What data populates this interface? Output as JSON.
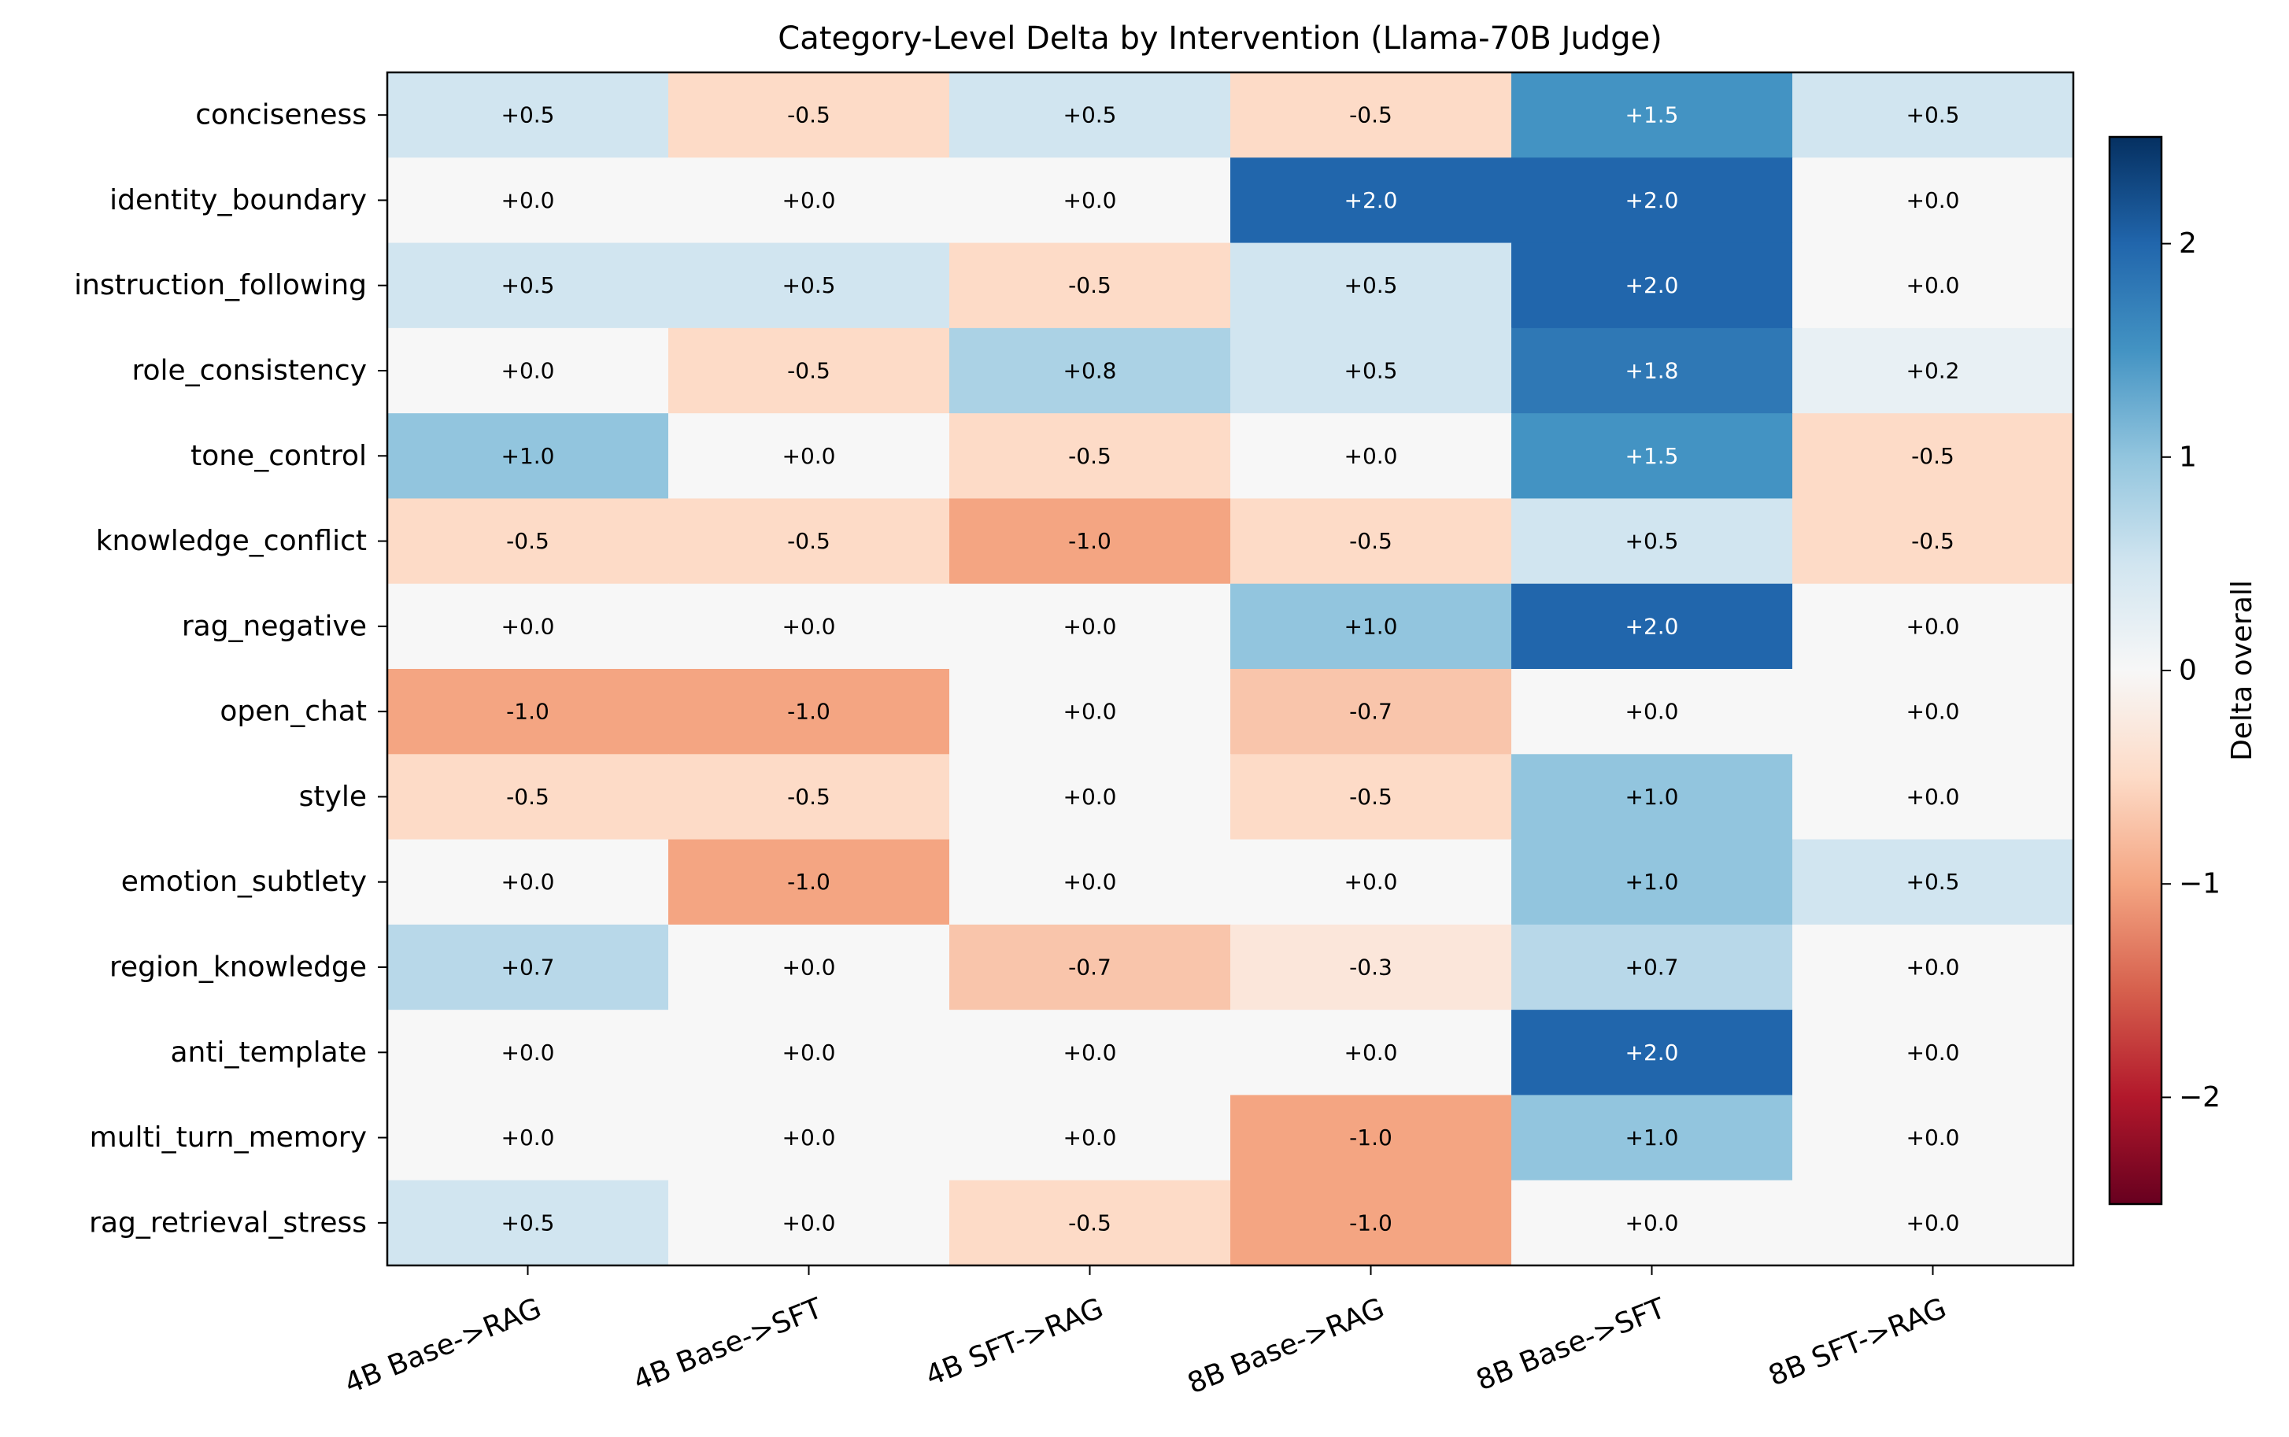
{
  "chart_data": {
    "type": "heatmap",
    "title": "Category-Level Delta by Intervention (Llama-70B Judge)",
    "xlabel": "",
    "ylabel": "",
    "columns": [
      "4B Base->RAG",
      "4B Base->SFT",
      "4B SFT->RAG",
      "8B Base->RAG",
      "8B Base->SFT",
      "8B SFT->RAG"
    ],
    "rows": [
      "conciseness",
      "identity_boundary",
      "instruction_following",
      "role_consistency",
      "tone_control",
      "knowledge_conflict",
      "rag_negative",
      "open_chat",
      "style",
      "emotion_subtlety",
      "region_knowledge",
      "anti_template",
      "multi_turn_memory",
      "rag_retrieval_stress"
    ],
    "values": [
      [
        0.5,
        -0.5,
        0.5,
        -0.5,
        1.5,
        0.5
      ],
      [
        0.0,
        0.0,
        0.0,
        2.0,
        2.0,
        0.0
      ],
      [
        0.5,
        0.5,
        -0.5,
        0.5,
        2.0,
        0.0
      ],
      [
        0.0,
        -0.5,
        0.8,
        0.5,
        1.8,
        0.2
      ],
      [
        1.0,
        0.0,
        -0.5,
        0.0,
        1.5,
        -0.5
      ],
      [
        -0.5,
        -0.5,
        -1.0,
        -0.5,
        0.5,
        -0.5
      ],
      [
        0.0,
        0.0,
        0.0,
        1.0,
        2.0,
        0.0
      ],
      [
        -1.0,
        -1.0,
        0.0,
        -0.7,
        0.0,
        0.0
      ],
      [
        -0.5,
        -0.5,
        0.0,
        -0.5,
        1.0,
        0.0
      ],
      [
        0.0,
        -1.0,
        0.0,
        0.0,
        1.0,
        0.5
      ],
      [
        0.7,
        0.0,
        -0.7,
        -0.3,
        0.7,
        0.0
      ],
      [
        0.0,
        0.0,
        0.0,
        0.0,
        2.0,
        0.0
      ],
      [
        0.0,
        0.0,
        0.0,
        -1.0,
        1.0,
        0.0
      ],
      [
        0.5,
        0.0,
        -0.5,
        -1.0,
        0.0,
        0.0
      ]
    ],
    "cell_labels": [
      [
        "+0.5",
        "-0.5",
        "+0.5",
        "-0.5",
        "+1.5",
        "+0.5"
      ],
      [
        "+0.0",
        "+0.0",
        "+0.0",
        "+2.0",
        "+2.0",
        "+0.0"
      ],
      [
        "+0.5",
        "+0.5",
        "-0.5",
        "+0.5",
        "+2.0",
        "+0.0"
      ],
      [
        "+0.0",
        "-0.5",
        "+0.8",
        "+0.5",
        "+1.8",
        "+0.2"
      ],
      [
        "+1.0",
        "+0.0",
        "-0.5",
        "+0.0",
        "+1.5",
        "-0.5"
      ],
      [
        "-0.5",
        "-0.5",
        "-1.0",
        "-0.5",
        "+0.5",
        "-0.5"
      ],
      [
        "+0.0",
        "+0.0",
        "+0.0",
        "+1.0",
        "+2.0",
        "+0.0"
      ],
      [
        "-1.0",
        "-1.0",
        "+0.0",
        "-0.7",
        "+0.0",
        "+0.0"
      ],
      [
        "-0.5",
        "-0.5",
        "+0.0",
        "-0.5",
        "+1.0",
        "+0.0"
      ],
      [
        "+0.0",
        "-1.0",
        "+0.0",
        "+0.0",
        "+1.0",
        "+0.5"
      ],
      [
        "+0.7",
        "+0.0",
        "-0.7",
        "-0.3",
        "+0.7",
        "+0.0"
      ],
      [
        "+0.0",
        "+0.0",
        "+0.0",
        "+0.0",
        "+2.0",
        "+0.0"
      ],
      [
        "+0.0",
        "+0.0",
        "+0.0",
        "-1.0",
        "+1.0",
        "+0.0"
      ],
      [
        "+0.5",
        "+0.0",
        "-0.5",
        "-1.0",
        "+0.0",
        "+0.0"
      ]
    ],
    "colormap": "RdBu",
    "vmin": -2.5,
    "vmax": 2.5,
    "colorbar": {
      "label": "Delta overall",
      "ticks": [
        -2,
        -1,
        0,
        1,
        2
      ],
      "tick_labels": [
        "−2",
        "−1",
        "0",
        "1",
        "2"
      ]
    },
    "colormap_stops": [
      "#67001f",
      "#b2182b",
      "#d6604d",
      "#f4a582",
      "#fddbc7",
      "#f7f7f7",
      "#d1e5f0",
      "#92c5de",
      "#4393c3",
      "#2166ac",
      "#053061"
    ]
  }
}
